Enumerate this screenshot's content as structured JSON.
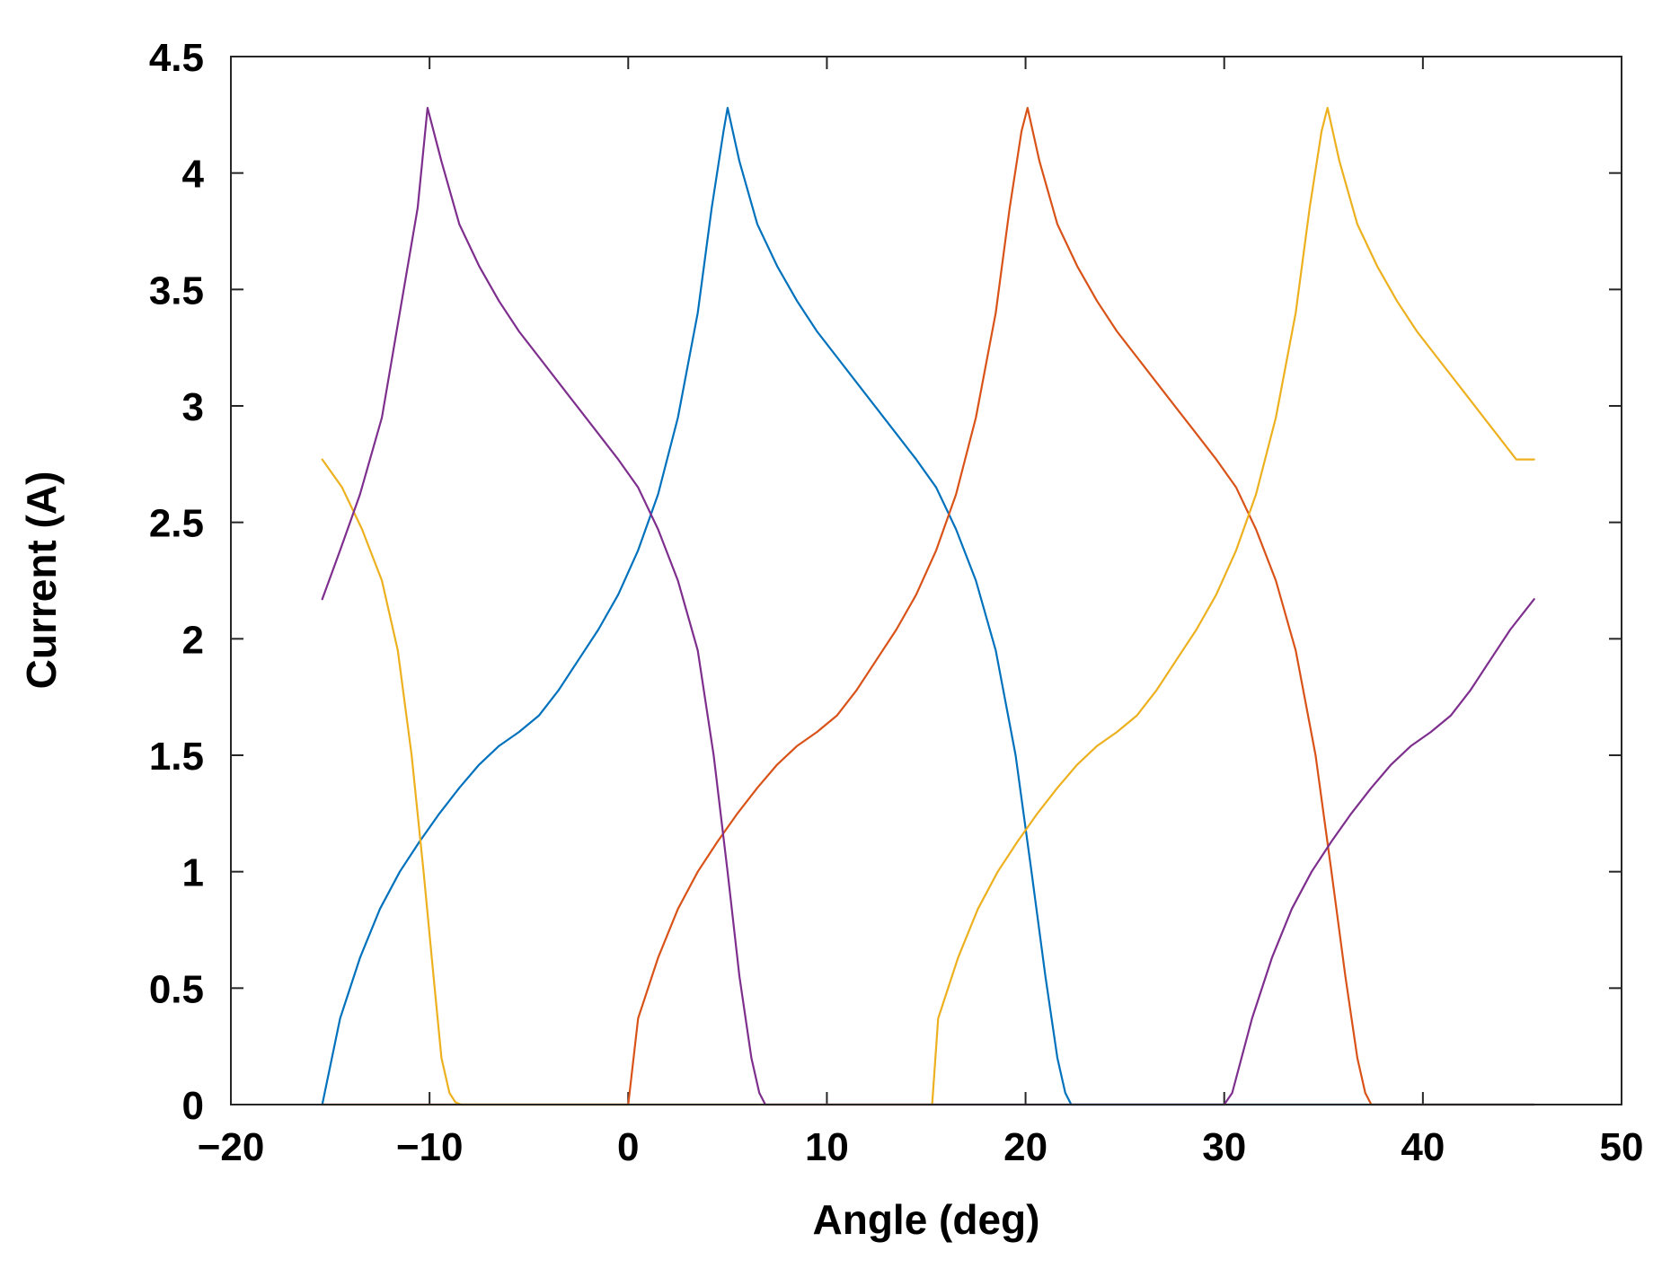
{
  "chart_data": {
    "type": "line",
    "title": "",
    "xlabel": "Angle (deg)",
    "ylabel": "Current (A)",
    "xlim": [
      -20,
      50
    ],
    "ylim": [
      0,
      4.5
    ],
    "xticks": [
      -20,
      -10,
      0,
      10,
      20,
      30,
      40,
      50
    ],
    "xtick_labels": [
      "−20",
      "−10",
      "0",
      "10",
      "20",
      "30",
      "40",
      "50"
    ],
    "yticks": [
      0,
      0.5,
      1,
      1.5,
      2,
      2.5,
      3,
      3.5,
      4,
      4.5
    ],
    "ytick_labels": [
      "0",
      "0.5",
      "1",
      "1.5",
      "2",
      "2.5",
      "3",
      "3.5",
      "4",
      "4.5"
    ],
    "grid": false,
    "legend": "none",
    "series": [
      {
        "color": "#0072BD",
        "x": [
          -15.4,
          -14.5,
          -13.5,
          -12.5,
          -11.5,
          -10.5,
          -9.5,
          -8.5,
          -7.5,
          -6.5,
          -5.5,
          -4.5,
          -3.5,
          -2.5,
          -1.5,
          -0.5,
          0.5,
          1.5,
          2.5,
          3.5,
          4.2,
          4.8,
          5.0,
          5.6,
          6.5,
          7.5,
          8.5,
          9.5,
          10.5,
          11.5,
          12.5,
          13.5,
          14.5,
          15.5,
          16.5,
          17.5,
          18.5,
          19.5,
          20.3,
          21.0,
          21.6,
          22.0,
          22.3,
          30.0,
          38.0,
          45.6
        ],
        "y": [
          0,
          0.37,
          0.63,
          0.84,
          1.0,
          1.13,
          1.25,
          1.36,
          1.46,
          1.54,
          1.6,
          1.67,
          1.78,
          1.91,
          2.04,
          2.19,
          2.38,
          2.62,
          2.95,
          3.4,
          3.85,
          4.18,
          4.28,
          4.05,
          3.78,
          3.6,
          3.45,
          3.32,
          3.21,
          3.1,
          2.99,
          2.88,
          2.77,
          2.65,
          2.47,
          2.25,
          1.95,
          1.5,
          1.0,
          0.55,
          0.2,
          0.05,
          0,
          0,
          0,
          0
        ]
      },
      {
        "color": "#D95319",
        "x": [
          -15.4,
          -5.0,
          0.0,
          0.5,
          1.5,
          2.5,
          3.5,
          4.5,
          5.5,
          6.5,
          7.5,
          8.5,
          9.5,
          10.5,
          11.5,
          12.5,
          13.5,
          14.5,
          15.5,
          16.5,
          17.5,
          18.5,
          19.2,
          19.8,
          20.1,
          20.7,
          21.6,
          22.6,
          23.6,
          24.6,
          25.6,
          26.6,
          27.6,
          28.6,
          29.6,
          30.6,
          31.6,
          32.6,
          33.6,
          34.6,
          35.4,
          36.1,
          36.7,
          37.1,
          37.4,
          41.0,
          45.6
        ],
        "y": [
          0,
          0,
          0,
          0.37,
          0.63,
          0.84,
          1.0,
          1.13,
          1.25,
          1.36,
          1.46,
          1.54,
          1.6,
          1.67,
          1.78,
          1.91,
          2.04,
          2.19,
          2.38,
          2.62,
          2.95,
          3.4,
          3.85,
          4.18,
          4.28,
          4.05,
          3.78,
          3.6,
          3.45,
          3.32,
          3.21,
          3.1,
          2.99,
          2.88,
          2.77,
          2.65,
          2.47,
          2.25,
          1.95,
          1.5,
          1.0,
          0.55,
          0.2,
          0.05,
          0,
          0,
          0
        ]
      },
      {
        "color": "#EDB120",
        "x": [
          -15.4,
          -14.4,
          -13.4,
          -12.4,
          -11.6,
          -10.9,
          -10.3,
          -9.8,
          -9.4,
          -9.0,
          -8.7,
          -8.4,
          -8.2,
          0.0,
          10.0,
          15.3,
          15.6,
          16.6,
          17.6,
          18.6,
          19.6,
          20.6,
          21.6,
          22.6,
          23.6,
          24.6,
          25.6,
          26.6,
          27.6,
          28.6,
          29.6,
          30.6,
          31.6,
          32.6,
          33.6,
          34.3,
          34.9,
          35.2,
          35.8,
          36.7,
          37.7,
          38.7,
          39.7,
          40.7,
          41.7,
          42.7,
          43.7,
          44.7,
          45.6
        ],
        "y": [
          2.77,
          2.65,
          2.47,
          2.25,
          1.95,
          1.5,
          1.0,
          0.55,
          0.2,
          0.05,
          0.01,
          0,
          0,
          0,
          0,
          0,
          0.37,
          0.63,
          0.84,
          1.0,
          1.13,
          1.25,
          1.36,
          1.46,
          1.54,
          1.6,
          1.67,
          1.78,
          1.91,
          2.04,
          2.19,
          2.38,
          2.62,
          2.95,
          3.4,
          3.85,
          4.18,
          4.28,
          4.05,
          3.78,
          3.6,
          3.45,
          3.32,
          3.21,
          3.1,
          2.99,
          2.88,
          2.77,
          2.77
        ]
      },
      {
        "color": "#7E2F8E",
        "x": [
          -15.4,
          -14.5,
          -13.5,
          -12.4,
          -11.5,
          -10.6,
          -10.1,
          -9.4,
          -8.5,
          -7.5,
          -6.5,
          -5.5,
          -4.5,
          -3.5,
          -2.5,
          -1.5,
          -0.5,
          0.5,
          1.5,
          2.5,
          3.5,
          4.3,
          5.0,
          5.6,
          6.2,
          6.6,
          6.9,
          10.0,
          20.0,
          30.0,
          30.4,
          31.4,
          32.4,
          33.4,
          34.4,
          35.4,
          36.4,
          37.4,
          38.4,
          39.4,
          40.4,
          41.4,
          42.4,
          43.4,
          44.4,
          45.6
        ],
        "y": [
          2.17,
          2.38,
          2.62,
          2.95,
          3.4,
          3.85,
          4.28,
          4.05,
          3.78,
          3.6,
          3.45,
          3.32,
          3.21,
          3.1,
          2.99,
          2.88,
          2.77,
          2.65,
          2.47,
          2.25,
          1.95,
          1.5,
          1.0,
          0.55,
          0.2,
          0.05,
          0,
          0,
          0,
          0,
          0.05,
          0.37,
          0.63,
          0.84,
          1.0,
          1.13,
          1.25,
          1.36,
          1.46,
          1.54,
          1.6,
          1.67,
          1.78,
          1.91,
          2.04,
          2.17
        ]
      }
    ]
  }
}
